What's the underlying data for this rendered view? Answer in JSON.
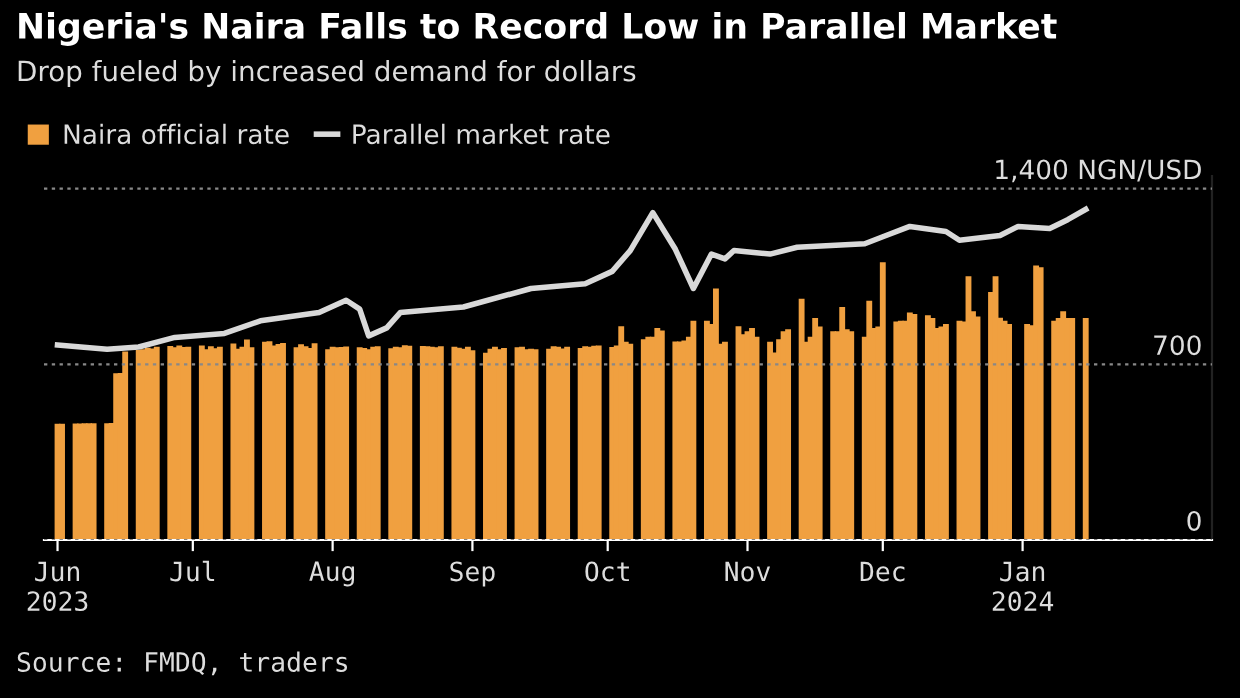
{
  "chart_data": {
    "type": "bar",
    "title": "Nigeria's Naira Falls to Record Low in Parallel Market",
    "subtitle": "Drop fueled by increased demand for dollars",
    "annotations": [
      "Source: FMDQ, traders"
    ],
    "legend": "top left",
    "grid": "y",
    "line_style": "solid",
    "marker": "none",
    "xlim": [
      "2023-05-29",
      "2024-02-12"
    ],
    "xticks": [
      {
        "value": "2023-06-01",
        "label": "Jun\n2023"
      },
      {
        "value": "2023-07-01",
        "label": "Jul"
      },
      {
        "value": "2023-08-01",
        "label": "Aug"
      },
      {
        "value": "2023-09-01",
        "label": "Sep"
      },
      {
        "value": "2023-10-01",
        "label": "Oct"
      },
      {
        "value": "2023-11-01",
        "label": "Nov"
      },
      {
        "value": "2023-12-01",
        "label": "Dec"
      },
      {
        "value": "2024-01-01",
        "label": "Jan\n2024"
      }
    ],
    "ylim": [
      0,
      1450
    ],
    "yticks": [
      0,
      700,
      {
        "value": 1400,
        "label": "1,400 NGN/USD"
      }
    ],
    "series": [
      {
        "name": "Naira official rate",
        "color": "#f0a040",
        "x": [
          "2023-06-01",
          "2023-06-02",
          "2023-06-05",
          "2023-06-06",
          "2023-06-07",
          "2023-06-08",
          "2023-06-09",
          "2023-06-12",
          "2023-06-13",
          "2023-06-14",
          "2023-06-15",
          "2023-06-16",
          "2023-06-19",
          "2023-06-20",
          "2023-06-21",
          "2023-06-22",
          "2023-06-23",
          "2023-06-26",
          "2023-06-27",
          "2023-06-28",
          "2023-06-29",
          "2023-06-30",
          "2023-07-03",
          "2023-07-04",
          "2023-07-05",
          "2023-07-06",
          "2023-07-07",
          "2023-07-10",
          "2023-07-11",
          "2023-07-12",
          "2023-07-13",
          "2023-07-14",
          "2023-07-17",
          "2023-07-18",
          "2023-07-19",
          "2023-07-20",
          "2023-07-21",
          "2023-07-24",
          "2023-07-25",
          "2023-07-26",
          "2023-07-27",
          "2023-07-28",
          "2023-07-31",
          "2023-08-01",
          "2023-08-02",
          "2023-08-03",
          "2023-08-04",
          "2023-08-07",
          "2023-08-08",
          "2023-08-09",
          "2023-08-10",
          "2023-08-11",
          "2023-08-14",
          "2023-08-15",
          "2023-08-16",
          "2023-08-17",
          "2023-08-18",
          "2023-08-21",
          "2023-08-22",
          "2023-08-23",
          "2023-08-24",
          "2023-08-25",
          "2023-08-28",
          "2023-08-29",
          "2023-08-30",
          "2023-08-31",
          "2023-09-01",
          "2023-09-04",
          "2023-09-05",
          "2023-09-06",
          "2023-09-07",
          "2023-09-08",
          "2023-09-11",
          "2023-09-12",
          "2023-09-13",
          "2023-09-14",
          "2023-09-15",
          "2023-09-18",
          "2023-09-19",
          "2023-09-20",
          "2023-09-21",
          "2023-09-22",
          "2023-09-25",
          "2023-09-26",
          "2023-09-27",
          "2023-09-28",
          "2023-09-29",
          "2023-10-02",
          "2023-10-03",
          "2023-10-04",
          "2023-10-05",
          "2023-10-06",
          "2023-10-09",
          "2023-10-10",
          "2023-10-11",
          "2023-10-12",
          "2023-10-13",
          "2023-10-16",
          "2023-10-17",
          "2023-10-18",
          "2023-10-19",
          "2023-10-20",
          "2023-10-23",
          "2023-10-24",
          "2023-10-25",
          "2023-10-26",
          "2023-10-27",
          "2023-10-30",
          "2023-10-31",
          "2023-11-01",
          "2023-11-02",
          "2023-11-03",
          "2023-11-06",
          "2023-11-07",
          "2023-11-08",
          "2023-11-09",
          "2023-11-10",
          "2023-11-13",
          "2023-11-14",
          "2023-11-15",
          "2023-11-16",
          "2023-11-17",
          "2023-11-20",
          "2023-11-21",
          "2023-11-22",
          "2023-11-23",
          "2023-11-24",
          "2023-11-27",
          "2023-11-28",
          "2023-11-29",
          "2023-11-30",
          "2023-12-01",
          "2023-12-04",
          "2023-12-05",
          "2023-12-06",
          "2023-12-07",
          "2023-12-08",
          "2023-12-11",
          "2023-12-12",
          "2023-12-13",
          "2023-12-14",
          "2023-12-15",
          "2023-12-18",
          "2023-12-19",
          "2023-12-20",
          "2023-12-21",
          "2023-12-22",
          "2023-12-25",
          "2023-12-26",
          "2023-12-27",
          "2023-12-28",
          "2023-12-29",
          "2024-01-02",
          "2024-01-03",
          "2024-01-04",
          "2024-01-05",
          "2024-01-08",
          "2024-01-09",
          "2024-01-10",
          "2024-01-11",
          "2024-01-12",
          "2024-01-15"
        ],
        "values": [
          463,
          463,
          464,
          464,
          465,
          465,
          465,
          465,
          466,
          664,
          665,
          751,
          757,
          760,
          766,
          763,
          770,
          773,
          768,
          775,
          769,
          770,
          775,
          760,
          772,
          764,
          770,
          783,
          762,
          770,
          799,
          768,
          790,
          792,
          775,
          781,
          785,
          768,
          780,
          772,
          765,
          784,
          760,
          770,
          768,
          769,
          771,
          768,
          765,
          760,
          770,
          772,
          764,
          770,
          768,
          776,
          774,
          773,
          772,
          770,
          768,
          772,
          770,
          766,
          762,
          770,
          756,
          746,
          762,
          770,
          760,
          765,
          768,
          770,
          760,
          762,
          760,
          762,
          772,
          770,
          763,
          770,
          765,
          772,
          770,
          774,
          775,
          769,
          775,
          851,
          790,
          782,
          800,
          810,
          810,
          845,
          835,
          791,
          791,
          795,
          810,
          873,
          873,
          860,
          1002,
          782,
          790,
          851,
          820,
          832,
          845,
          810,
          790,
          747,
          800,
          832,
          840,
          961,
          790,
          810,
          884,
          850,
          832,
          832,
          928,
          840,
          832,
          810,
          953,
          845,
          850,
          1106,
          870,
          873,
          873,
          906,
          900,
          895,
          884,
          845,
          850,
          860,
          873,
          870,
          1051,
          911,
          890,
          988,
          1051,
          885,
          873,
          860,
          860,
          855,
          1093,
          1087,
          873,
          884,
          911,
          884,
          884,
          884
        ]
      },
      {
        "name": "Parallel market rate",
        "type": "line",
        "color": "#d9d9d9",
        "x": [
          "2023-06-01",
          "2023-06-12",
          "2023-06-19",
          "2023-06-27",
          "2023-07-08",
          "2023-07-16",
          "2023-07-29",
          "2023-08-04",
          "2023-08-07",
          "2023-08-09",
          "2023-08-13",
          "2023-08-16",
          "2023-08-30",
          "2023-09-14",
          "2023-09-26",
          "2023-10-02",
          "2023-10-06",
          "2023-10-11",
          "2023-10-16",
          "2023-10-20",
          "2023-10-24",
          "2023-10-27",
          "2023-10-29",
          "2023-11-06",
          "2023-11-12",
          "2023-11-27",
          "2023-12-01",
          "2023-12-07",
          "2023-12-15",
          "2023-12-18",
          "2023-12-27",
          "2023-12-31",
          "2024-01-07",
          "2024-01-11",
          "2024-01-15"
        ],
        "values": [
          777,
          760,
          769,
          807,
          823,
          873,
          906,
          955,
          920,
          813,
          845,
          906,
          928,
          1002,
          1021,
          1070,
          1153,
          1304,
          1158,
          1002,
          1139,
          1120,
          1153,
          1139,
          1166,
          1180,
          1208,
          1249,
          1229,
          1194,
          1213,
          1249,
          1241,
          1276,
          1317
        ]
      }
    ]
  }
}
